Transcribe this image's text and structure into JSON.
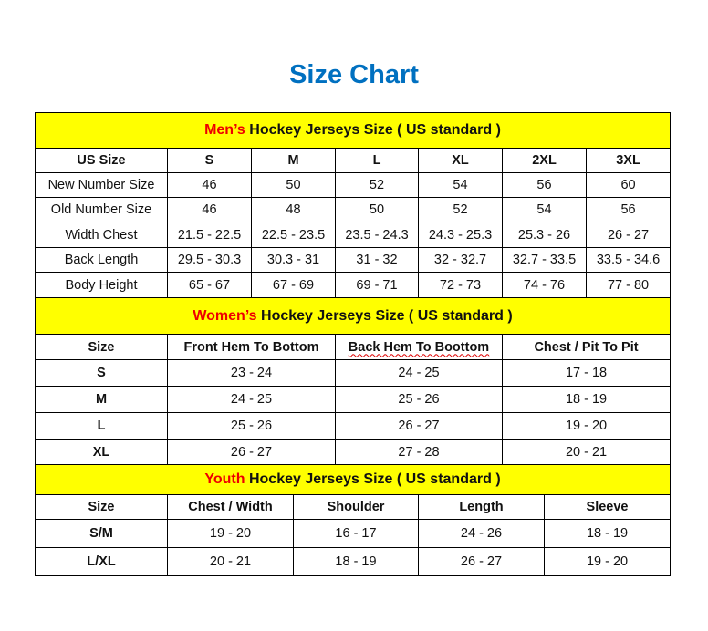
{
  "title": "Size Chart",
  "colors": {
    "title": "#0070c0",
    "banner": "#ffff00",
    "highlight": "#ee0000"
  },
  "men": {
    "banner_highlight": "Men’s",
    "banner_rest": " Hockey Jerseys Size ( US standard )",
    "header": [
      "US Size",
      "S",
      "M",
      "L",
      "XL",
      "2XL",
      "3XL"
    ],
    "rows": [
      [
        "New Number Size",
        "46",
        "50",
        "52",
        "54",
        "56",
        "60"
      ],
      [
        "Old Number Size",
        "46",
        "48",
        "50",
        "52",
        "54",
        "56"
      ],
      [
        "Width Chest",
        "21.5 - 22.5",
        "22.5 - 23.5",
        "23.5 - 24.3",
        "24.3 - 25.3",
        "25.3 - 26",
        "26 - 27"
      ],
      [
        "Back Length",
        "29.5 - 30.3",
        "30.3 - 31",
        "31 - 32",
        "32 - 32.7",
        "32.7 - 33.5",
        "33.5 - 34.6"
      ],
      [
        "Body Height",
        "65 - 67",
        "67 - 69",
        "69 - 71",
        "72 - 73",
        "74 - 76",
        "77 - 80"
      ]
    ]
  },
  "women": {
    "banner_highlight": "Women’s",
    "banner_rest": " Hockey Jerseys Size ( US standard )",
    "header": [
      "Size",
      "Front Hem To Bottom",
      "Back Hem To Boottom",
      "Chest / Pit To Pit"
    ],
    "rows": [
      [
        "S",
        "23 - 24",
        "24 - 25",
        "17 - 18"
      ],
      [
        "M",
        "24 - 25",
        "25 - 26",
        "18 - 19"
      ],
      [
        "L",
        "25 - 26",
        "26 - 27",
        "19 - 20"
      ],
      [
        "XL",
        "26 - 27",
        "27 - 28",
        "20 - 21"
      ]
    ]
  },
  "youth": {
    "banner_highlight": "Youth",
    "banner_rest": " Hockey Jerseys Size ( US standard )",
    "header": [
      "Size",
      "Chest / Width",
      "Shoulder",
      "Length",
      "Sleeve"
    ],
    "rows": [
      [
        "S/M",
        "19 - 20",
        "16 - 17",
        "24 - 26",
        "18 - 19"
      ],
      [
        "L/XL",
        "20 - 21",
        "18 - 19",
        "26 - 27",
        "19 - 20"
      ]
    ]
  }
}
